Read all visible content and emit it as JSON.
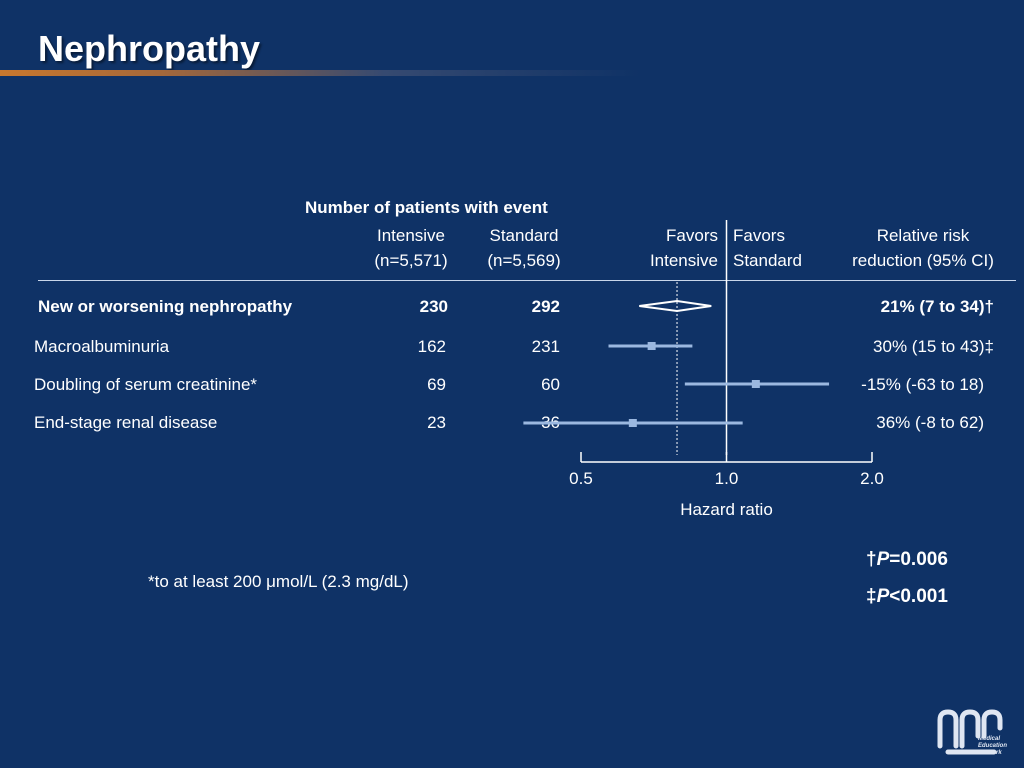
{
  "title": "Nephropathy",
  "header": {
    "group_label": "Number of patients with event",
    "intensive_label": "Intensive",
    "intensive_n": "(n=5,571)",
    "standard_label": "Standard",
    "standard_n": "(n=5,569)",
    "favors_intensive_1": "Favors",
    "favors_intensive_2": "Intensive",
    "favors_standard_1": "Favors",
    "favors_standard_2": "Standard",
    "rrr_label_1": "Relative risk",
    "rrr_label_2": "reduction (95% CI)"
  },
  "rows": [
    {
      "label": "New or worsening nephropathy",
      "intensive": "230",
      "standard": "292",
      "rrr": "21% (7 to 34)†"
    },
    {
      "label": "Macroalbuminuria",
      "intensive": "162",
      "standard": "231",
      "rrr": "30% (15 to 43)‡"
    },
    {
      "label": "Doubling of serum creatinine*",
      "intensive": "69",
      "standard": "60",
      "rrr": "-15% (-63 to 18)"
    },
    {
      "label": "End-stage renal disease",
      "intensive": "23",
      "standard": "36",
      "rrr": "36% (-8 to 62)"
    }
  ],
  "footnote": "*to at least 200 μmol/L (2.3 mg/dL)",
  "pvalues": {
    "p1_symbol": "†",
    "p1_p": "P",
    "p1_value": "=0.006",
    "p2_symbol": "‡",
    "p2_p": "P",
    "p2_value": "<0.001"
  },
  "logo_text": [
    "Medical",
    "Education",
    "Network"
  ],
  "colors": {
    "background": "#0f3266",
    "ci_line": "#9bb8e0",
    "title_accent": "#c9782e"
  },
  "chart_data": {
    "type": "forest",
    "xlabel": "Hazard ratio",
    "xscale": "log",
    "xticks": [
      0.5,
      1.0,
      2.0
    ],
    "xtick_labels": [
      "0.5",
      "1.0",
      "2.0"
    ],
    "reference_line": 1.0,
    "overall_line": 0.79,
    "series": [
      {
        "label": "New or worsening nephropathy",
        "hr": 0.79,
        "lo": 0.66,
        "hi": 0.93,
        "marker": "diamond"
      },
      {
        "label": "Macroalbuminuria",
        "hr": 0.7,
        "lo": 0.57,
        "hi": 0.85,
        "marker": "square"
      },
      {
        "label": "Doubling of serum creatinine*",
        "hr": 1.15,
        "lo": 0.82,
        "hi": 1.63,
        "marker": "square"
      },
      {
        "label": "End-stage renal disease",
        "hr": 0.64,
        "lo": 0.38,
        "hi": 1.08,
        "marker": "square"
      }
    ]
  }
}
